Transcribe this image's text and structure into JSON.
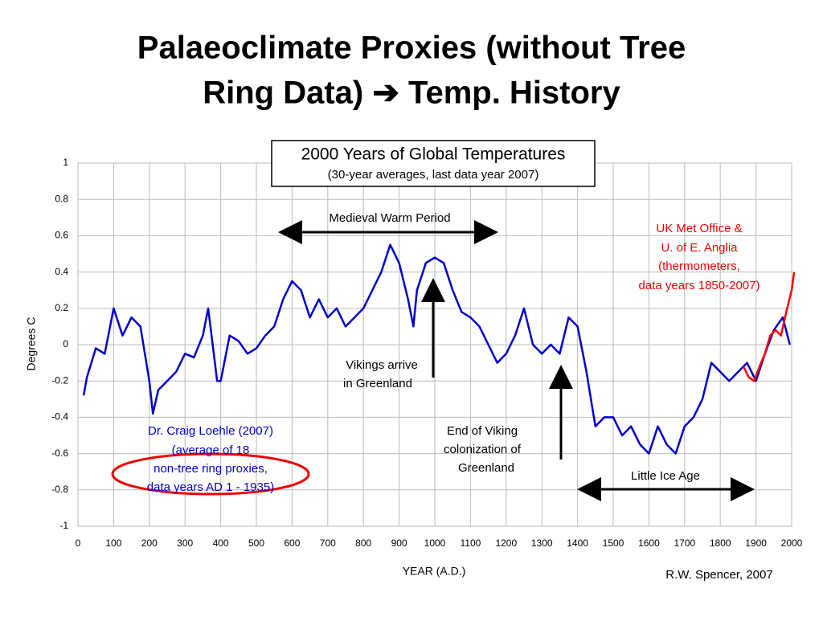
{
  "slide_title": [
    "Palaeoclimate Proxies (without Tree",
    "Ring Data) ➔ Temp. History"
  ],
  "chart_data": {
    "type": "line",
    "title": "2000 Years of Global Temperatures",
    "subtitle": "(30-year averages, last data year 2007)",
    "x_label": "YEAR (A.D.)",
    "y_label": "Degrees C",
    "xlim": [
      0,
      2000
    ],
    "xticks": [
      0,
      100,
      200,
      300,
      400,
      500,
      600,
      700,
      800,
      900,
      1000,
      1100,
      1200,
      1300,
      1400,
      1500,
      1600,
      1700,
      1800,
      1900,
      2000
    ],
    "ylim": [
      -1,
      1
    ],
    "yticks": [
      -1,
      -0.8,
      -0.6,
      -0.4,
      -0.2,
      0,
      0.2,
      0.4,
      0.6,
      0.8,
      1
    ],
    "grid": true,
    "series": [
      {
        "color": "#0000cc",
        "x": [
          16,
          25,
          50,
          75,
          100,
          125,
          150,
          175,
          200,
          210,
          225,
          250,
          275,
          300,
          325,
          350,
          365,
          390,
          400,
          425,
          450,
          475,
          500,
          525,
          550,
          575,
          600,
          625,
          650,
          675,
          700,
          725,
          750,
          775,
          800,
          825,
          850,
          875,
          900,
          925,
          940,
          950,
          975,
          1000,
          1025,
          1050,
          1075,
          1100,
          1125,
          1150,
          1175,
          1200,
          1225,
          1250,
          1275,
          1300,
          1325,
          1350,
          1375,
          1400,
          1425,
          1450,
          1475,
          1500,
          1525,
          1550,
          1575,
          1600,
          1625,
          1650,
          1675,
          1700,
          1725,
          1750,
          1775,
          1800,
          1825,
          1850,
          1875,
          1900,
          1925,
          1950,
          1975,
          1995
        ],
        "values": [
          -0.28,
          -0.18,
          -0.02,
          -0.05,
          0.2,
          0.05,
          0.15,
          0.1,
          -0.2,
          -0.38,
          -0.25,
          -0.2,
          -0.15,
          -0.05,
          -0.07,
          0.05,
          0.2,
          -0.2,
          -0.2,
          0.05,
          0.02,
          -0.05,
          -0.02,
          0.05,
          0.1,
          0.25,
          0.35,
          0.3,
          0.15,
          0.25,
          0.15,
          0.2,
          0.1,
          0.15,
          0.2,
          0.3,
          0.4,
          0.55,
          0.45,
          0.25,
          0.1,
          0.3,
          0.45,
          0.48,
          0.45,
          0.3,
          0.18,
          0.15,
          0.1,
          0.0,
          -0.1,
          -0.05,
          0.05,
          0.2,
          0.0,
          -0.05,
          0.0,
          -0.05,
          0.15,
          0.1,
          -0.15,
          -0.45,
          -0.4,
          -0.4,
          -0.5,
          -0.45,
          -0.55,
          -0.6,
          -0.45,
          -0.55,
          -0.6,
          -0.45,
          -0.4,
          -0.3,
          -0.1,
          -0.15,
          -0.2,
          -0.15,
          -0.1,
          -0.2,
          -0.05,
          0.08,
          0.15,
          0.0
        ]
      },
      {
        "color": "#ff0000",
        "x": [
          1865,
          1880,
          1895,
          1910,
          1925,
          1940,
          1955,
          1970,
          1985,
          2000,
          2007
        ],
        "values": [
          -0.12,
          -0.18,
          -0.2,
          -0.12,
          -0.05,
          0.05,
          0.08,
          0.05,
          0.18,
          0.3,
          0.4
        ]
      }
    ],
    "annotations": [
      "Medieval Warm Period",
      "UK Met Office &",
      "U. of E. Anglia",
      "(thermometers,",
      "data years 1850-2007)",
      "Vikings arrive",
      "in Greenland",
      "End of Viking",
      "colonization of",
      "Greenland",
      "Little Ice Age",
      "Dr. Craig Loehle (2007)",
      "(average of 18",
      "non-tree ring proxies,",
      "data years AD 1 - 1935)",
      "R.W. Spencer, 2007"
    ]
  }
}
